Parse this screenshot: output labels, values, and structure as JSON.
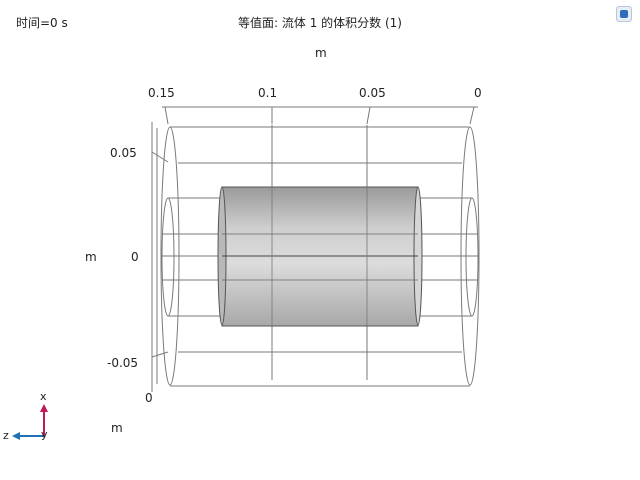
{
  "header": {
    "time_label": "时间=0 s",
    "title": "等值面: 流体 1 的体积分数 (1)"
  },
  "axes": {
    "top_unit": "m",
    "left_unit": "m",
    "bottom_unit": "m",
    "top_ticks": [
      "0.15",
      "0.1",
      "0.05",
      "0"
    ],
    "left_ticks": [
      "0.05",
      "0",
      "-0.05"
    ],
    "bottom_tick": "0"
  },
  "triad": {
    "x": "x",
    "y": "y",
    "z": "z",
    "colors": {
      "x": "#c2185b",
      "z": "#1e6fb4"
    }
  },
  "icons": {
    "corner": "view-toggle-icon"
  }
}
